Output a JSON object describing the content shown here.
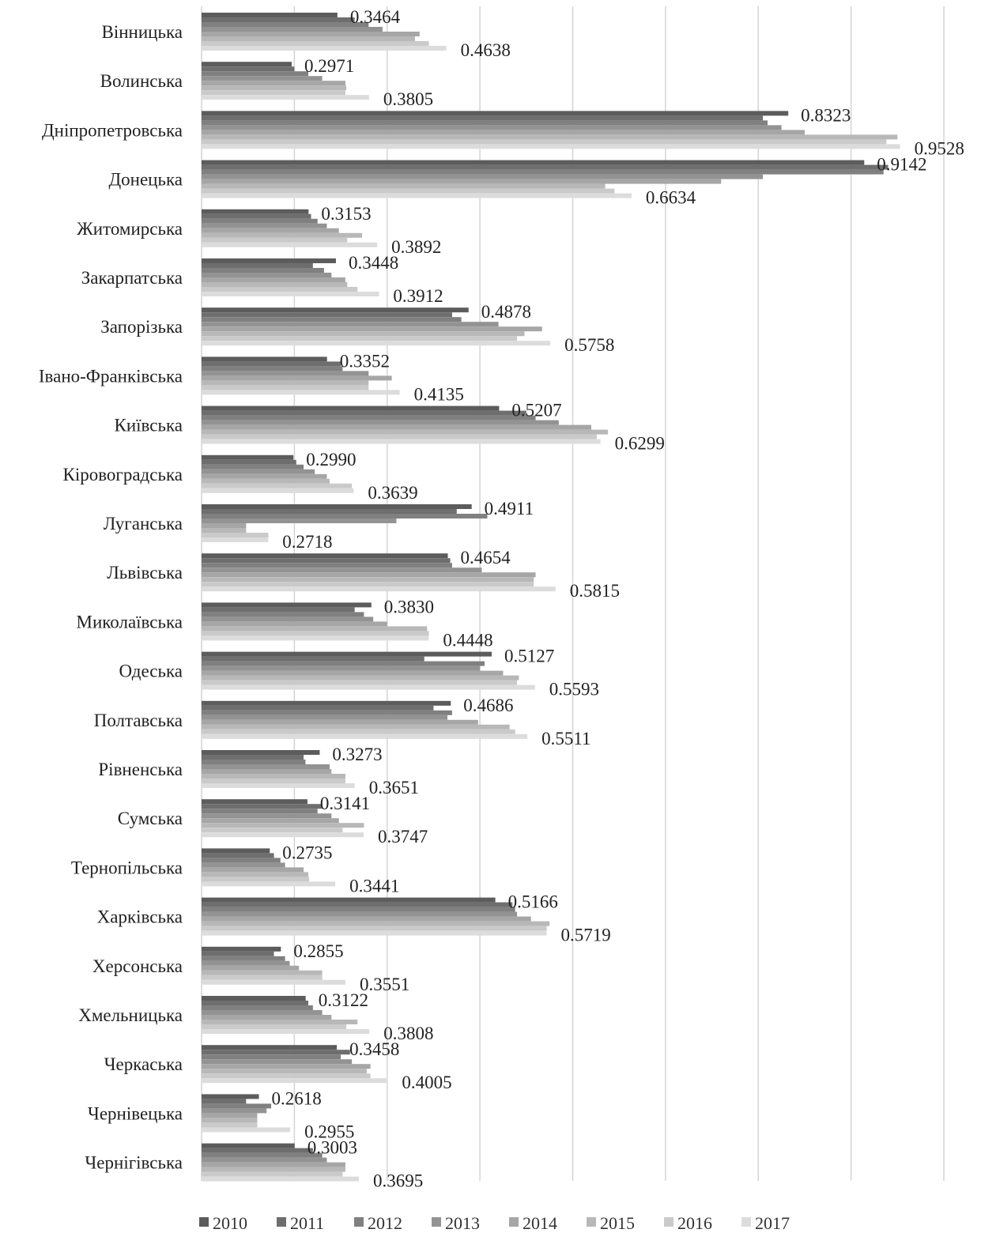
{
  "chart_data": {
    "type": "bar",
    "orientation": "horizontal",
    "categories": [
      "Вінницька",
      "Волинська",
      "Дніпропетровська",
      "Донецька",
      "Житомирська",
      "Закарпатська",
      "Запорізька",
      "Івано-Франківська",
      "Київська",
      "Кіровоградська",
      "Луганська",
      "Львівська",
      "Миколаївська",
      "Одеська",
      "Полтавська",
      "Рівненська",
      "Сумська",
      "Тернопільська",
      "Харківська",
      "Херсонська",
      "Хмельницька",
      "Черкаська",
      "Чернівецька",
      "Чернігівська"
    ],
    "xlim": [
      0.2,
      1.0
    ],
    "grid": true,
    "legend_position": "bottom",
    "colors": [
      "#5c5c5c",
      "#6e6e6e",
      "#808080",
      "#939393",
      "#a6a6a6",
      "#b8b8b8",
      "#cacaca",
      "#dcdcdc"
    ],
    "series": [
      {
        "name": "2010",
        "values": [
          0.3464,
          0.2971,
          0.8323,
          0.9142,
          0.3153,
          0.3448,
          0.4878,
          0.3352,
          0.5207,
          0.299,
          0.4911,
          0.4654,
          0.383,
          0.5127,
          0.4686,
          0.3273,
          0.3141,
          0.2735,
          0.5166,
          0.2855,
          0.3122,
          0.3458,
          0.2618,
          0.3003
        ]
      },
      {
        "name": "2011",
        "values": [
          0.365,
          0.3,
          0.805,
          0.94,
          0.318,
          0.32,
          0.47,
          0.35,
          0.55,
          0.302,
          0.475,
          0.468,
          0.365,
          0.44,
          0.45,
          0.31,
          0.33,
          0.278,
          0.535,
          0.278,
          0.315,
          0.36,
          0.248,
          0.32
        ]
      },
      {
        "name": "2012",
        "values": [
          0.38,
          0.315,
          0.81,
          0.935,
          0.325,
          0.332,
          0.48,
          0.352,
          0.56,
          0.31,
          0.508,
          0.47,
          0.375,
          0.505,
          0.47,
          0.312,
          0.325,
          0.285,
          0.538,
          0.29,
          0.32,
          0.35,
          0.275,
          0.33
        ]
      },
      {
        "name": "2013",
        "values": [
          0.395,
          0.33,
          0.825,
          0.805,
          0.335,
          0.34,
          0.52,
          0.38,
          0.585,
          0.322,
          0.41,
          0.502,
          0.385,
          0.5,
          0.465,
          0.338,
          0.34,
          0.29,
          0.54,
          0.295,
          0.33,
          0.362,
          0.27,
          0.335
        ]
      },
      {
        "name": "2014",
        "values": [
          0.435,
          0.355,
          0.85,
          0.76,
          0.348,
          0.355,
          0.567,
          0.405,
          0.62,
          0.335,
          0.248,
          0.56,
          0.4,
          0.525,
          0.498,
          0.34,
          0.348,
          0.31,
          0.555,
          0.305,
          0.34,
          0.382,
          0.26,
          0.355
        ]
      },
      {
        "name": "2015",
        "values": [
          0.43,
          0.356,
          0.95,
          0.635,
          0.373,
          0.357,
          0.548,
          0.38,
          0.638,
          0.338,
          0.248,
          0.558,
          0.443,
          0.542,
          0.532,
          0.355,
          0.375,
          0.315,
          0.575,
          0.33,
          0.368,
          0.378,
          0.26,
          0.355
        ]
      },
      {
        "name": "2016",
        "values": [
          0.445,
          0.355,
          0.938,
          0.645,
          0.357,
          0.368,
          0.54,
          0.38,
          0.626,
          0.362,
          0.272,
          0.558,
          0.445,
          0.54,
          0.538,
          0.355,
          0.352,
          0.316,
          0.572,
          0.33,
          0.356,
          0.382,
          0.26,
          0.352
        ]
      },
      {
        "name": "2017",
        "values": [
          0.4638,
          0.3805,
          0.9528,
          0.6634,
          0.3892,
          0.3912,
          0.5758,
          0.4135,
          0.6299,
          0.3639,
          0.2718,
          0.5815,
          0.4448,
          0.5593,
          0.5511,
          0.3651,
          0.3747,
          0.3441,
          0.5719,
          0.3551,
          0.3808,
          0.4005,
          0.2955,
          0.3695
        ]
      }
    ],
    "data_labels": {
      "first_series": [
        "0.3464",
        "0.2971",
        "0.8323",
        "0.9142",
        "0.3153",
        "0.3448",
        "0.4878",
        "0.3352",
        "0.5207",
        "0.2990",
        "0.4911",
        "0.4654",
        "0.3830",
        "0.5127",
        "0.4686",
        "0.3273",
        "0.3141",
        "0.2735",
        "0.5166",
        "0.2855",
        "0.3122",
        "0.3458",
        "0.2618",
        "0.3003"
      ],
      "last_series": [
        "0.4638",
        "0.3805",
        "0.9528",
        "0.6634",
        "0.3892",
        "0.3912",
        "0.5758",
        "0.4135",
        "0.6299",
        "0.3639",
        "0.2718",
        "0.5815",
        "0.4448",
        "0.5593",
        "0.5511",
        "0.3651",
        "0.3747",
        "0.3441",
        "0.5719",
        "0.3551",
        "0.3808",
        "0.4005",
        "0.2955",
        "0.3695"
      ]
    }
  }
}
